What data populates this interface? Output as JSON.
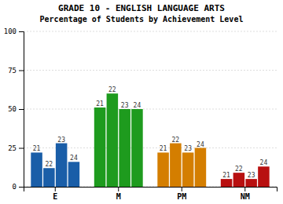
{
  "chart_data": {
    "type": "bar",
    "title": "GRADE 10 - ENGLISH LANGUAGE ARTS",
    "subtitle": "Percentage of Students by Achievement Level",
    "categories": [
      "E",
      "M",
      "PM",
      "NM"
    ],
    "series": [
      {
        "name": "21",
        "values": [
          22,
          51,
          22,
          5
        ],
        "colors": [
          "#1a5ea8",
          "#1e9b1e",
          "#d47e00",
          "#b81010"
        ]
      },
      {
        "name": "22",
        "values": [
          12,
          60,
          28,
          9
        ],
        "colors": [
          "#1a5ea8",
          "#1e9b1e",
          "#d47e00",
          "#b81010"
        ]
      },
      {
        "name": "23",
        "values": [
          28,
          50,
          22,
          5
        ],
        "colors": [
          "#1a5ea8",
          "#1e9b1e",
          "#d47e00",
          "#b81010"
        ]
      },
      {
        "name": "24",
        "values": [
          16,
          50,
          25,
          13
        ],
        "colors": [
          "#1a5ea8",
          "#1e9b1e",
          "#d47e00",
          "#b81010"
        ]
      }
    ],
    "ylim": [
      0,
      100
    ],
    "yticks": [
      0,
      25,
      50,
      75,
      100
    ],
    "grid": true
  }
}
